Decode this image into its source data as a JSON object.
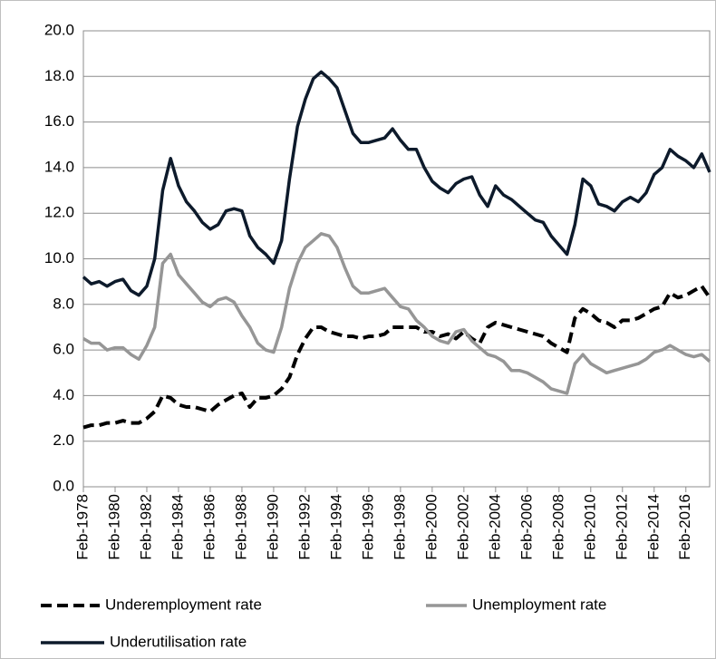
{
  "chart_data": {
    "type": "line",
    "categories": [
      "Feb-1978",
      null,
      null,
      null,
      "Feb-1980",
      null,
      null,
      null,
      "Feb-1982",
      null,
      null,
      null,
      "Feb-1984",
      null,
      null,
      null,
      "Feb-1986",
      null,
      null,
      null,
      "Feb-1988",
      null,
      null,
      null,
      "Feb-1990",
      null,
      null,
      null,
      "Feb-1992",
      null,
      null,
      null,
      "Feb-1994",
      null,
      null,
      null,
      "Feb-1996",
      null,
      null,
      null,
      "Feb-1998",
      null,
      null,
      null,
      "Feb-2000",
      null,
      null,
      null,
      "Feb-2002",
      null,
      null,
      null,
      "Feb-2004",
      null,
      null,
      null,
      "Feb-2006",
      null,
      null,
      null,
      "Feb-2008",
      null,
      null,
      null,
      "Feb-2010",
      null,
      null,
      null,
      "Feb-2012",
      null,
      null,
      null,
      "Feb-2014",
      null,
      null,
      null,
      "Feb-2016",
      null,
      null,
      null
    ],
    "series": [
      {
        "name": "Underemployment rate",
        "color": "#000000",
        "style": "dashed",
        "values": [
          2.6,
          2.7,
          2.7,
          2.8,
          2.8,
          2.9,
          2.8,
          2.8,
          3.0,
          3.3,
          4.0,
          3.9,
          3.6,
          3.5,
          3.5,
          3.4,
          3.3,
          3.6,
          3.8,
          4.0,
          4.1,
          3.5,
          3.9,
          3.9,
          4.0,
          4.3,
          4.8,
          5.8,
          6.5,
          7.0,
          7.0,
          6.8,
          6.7,
          6.6,
          6.6,
          6.5,
          6.6,
          6.6,
          6.7,
          7.0,
          7.0,
          7.0,
          7.0,
          6.8,
          6.8,
          6.6,
          6.7,
          6.5,
          6.8,
          6.5,
          6.3,
          7.0,
          7.2,
          7.1,
          7.0,
          6.9,
          6.8,
          6.7,
          6.6,
          6.3,
          6.1,
          5.9,
          7.4,
          7.8,
          7.6,
          7.3,
          7.2,
          7.0,
          7.3,
          7.3,
          7.4,
          7.6,
          7.8,
          7.9,
          8.5,
          8.3,
          8.4,
          8.6,
          8.8,
          8.3
        ]
      },
      {
        "name": "Unemployment rate",
        "color": "#969696",
        "style": "solid",
        "values": [
          6.5,
          6.3,
          6.3,
          6.0,
          6.1,
          6.1,
          5.8,
          5.6,
          6.2,
          7.0,
          9.8,
          10.2,
          9.3,
          8.9,
          8.5,
          8.1,
          7.9,
          8.2,
          8.3,
          8.1,
          7.5,
          7.0,
          6.3,
          6.0,
          5.9,
          7.0,
          8.7,
          9.8,
          10.5,
          10.8,
          11.1,
          11.0,
          10.5,
          9.6,
          8.8,
          8.5,
          8.5,
          8.6,
          8.7,
          8.3,
          7.9,
          7.8,
          7.3,
          7.0,
          6.6,
          6.4,
          6.3,
          6.8,
          6.9,
          6.4,
          6.1,
          5.8,
          5.7,
          5.5,
          5.1,
          5.1,
          5.0,
          4.8,
          4.6,
          4.3,
          4.2,
          4.1,
          5.4,
          5.8,
          5.4,
          5.2,
          5.0,
          5.1,
          5.2,
          5.3,
          5.4,
          5.6,
          5.9,
          6.0,
          6.2,
          6.0,
          5.8,
          5.7,
          5.8,
          5.5
        ]
      },
      {
        "name": "Underutilisation rate",
        "color": "#0d1a2b",
        "style": "solid",
        "values": [
          9.2,
          8.9,
          9.0,
          8.8,
          9.0,
          9.1,
          8.6,
          8.4,
          8.8,
          10.0,
          13.0,
          14.4,
          13.2,
          12.5,
          12.1,
          11.6,
          11.3,
          11.5,
          12.1,
          12.2,
          12.1,
          11.0,
          10.5,
          10.2,
          9.8,
          10.8,
          13.5,
          15.8,
          17.0,
          17.9,
          18.2,
          17.9,
          17.5,
          16.5,
          15.5,
          15.1,
          15.1,
          15.2,
          15.3,
          15.7,
          15.2,
          14.8,
          14.8,
          14.0,
          13.4,
          13.1,
          12.9,
          13.3,
          13.5,
          13.6,
          12.8,
          12.3,
          13.2,
          12.8,
          12.6,
          12.3,
          12.0,
          11.7,
          11.6,
          11.0,
          10.6,
          10.2,
          11.5,
          13.5,
          13.2,
          12.4,
          12.3,
          12.1,
          12.5,
          12.7,
          12.5,
          12.9,
          13.7,
          14.0,
          14.8,
          14.5,
          14.3,
          14.0,
          14.6,
          13.8
        ]
      }
    ],
    "ylim": [
      0,
      20
    ],
    "yticks": [
      {
        "value": 0,
        "label": "0.0"
      },
      {
        "value": 2,
        "label": "2.0"
      },
      {
        "value": 4,
        "label": "4.0"
      },
      {
        "value": 6,
        "label": "6.0"
      },
      {
        "value": 8,
        "label": "8.0"
      },
      {
        "value": 10,
        "label": "10.0"
      },
      {
        "value": 12,
        "label": "12.0"
      },
      {
        "value": 14,
        "label": "14.0"
      },
      {
        "value": 16,
        "label": "16.0"
      },
      {
        "value": 18,
        "label": "18.0"
      },
      {
        "value": 20,
        "label": "20.0"
      }
    ],
    "grid": true,
    "legend": "bottom"
  }
}
